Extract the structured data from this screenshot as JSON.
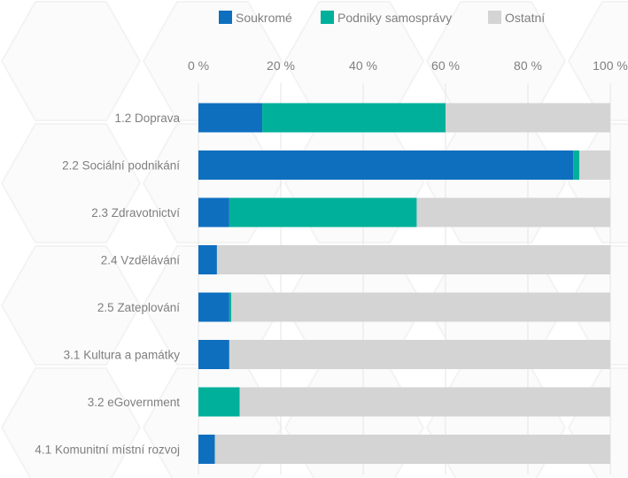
{
  "chart_data": {
    "type": "bar",
    "orientation": "horizontal",
    "stacked": "percent",
    "categories": [
      "1.2 Doprava",
      "2.2 Sociální podnikání",
      "2.3 Zdravotnictví",
      "2.4 Vzdělávání",
      "2.5 Zateplování",
      "3.1 Kultura a památky",
      "3.2 eGovernment",
      "4.1 Komunitní místní rozvoj"
    ],
    "series": [
      {
        "name": "Soukromé",
        "color": "#0f6fbf",
        "values": [
          15.5,
          91.0,
          7.5,
          4.5,
          7.5,
          7.5,
          0.0,
          4.0
        ]
      },
      {
        "name": "Podniky samosprávy",
        "color": "#00b09a",
        "values": [
          44.5,
          1.5,
          45.5,
          0.0,
          0.5,
          0.0,
          10.0,
          0.0
        ]
      },
      {
        "name": "Ostatní",
        "color": "#d4d4d4",
        "values": [
          40.0,
          7.5,
          47.0,
          95.5,
          92.0,
          92.5,
          90.0,
          96.0
        ]
      }
    ],
    "xlim": [
      0,
      100
    ],
    "xticks": [
      "0 %",
      "20 %",
      "40 %",
      "60 %",
      "80 %",
      "100 %"
    ],
    "legend_position": "top",
    "grid": true
  }
}
